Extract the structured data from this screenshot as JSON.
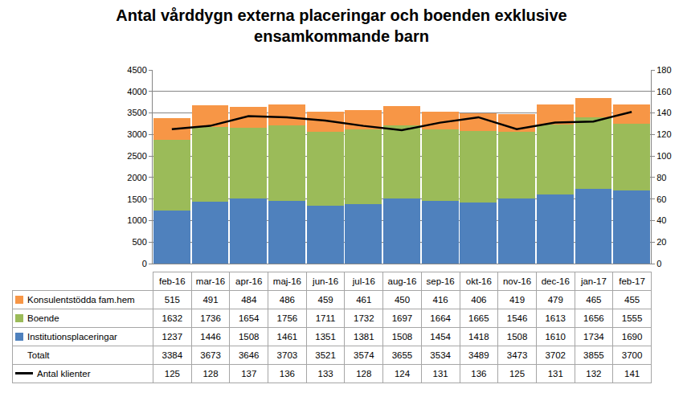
{
  "chart_data": {
    "type": "bar",
    "title": "Antal vårddygn externa placeringar och boenden exklusive ensamkommande barn",
    "stacked": true,
    "grid": true,
    "categories": [
      "feb-16",
      "mar-16",
      "apr-16",
      "maj-16",
      "jun-16",
      "jul-16",
      "aug-16",
      "sep-16",
      "okt-16",
      "nov-16",
      "dec-16",
      "jan-17",
      "feb-17"
    ],
    "series": [
      {
        "name": "Institutionsplaceringar",
        "color": "#4f81bd",
        "values": [
          1237,
          1446,
          1508,
          1461,
          1351,
          1381,
          1508,
          1454,
          1418,
          1508,
          1610,
          1734,
          1690
        ]
      },
      {
        "name": "Boende",
        "color": "#9bbb59",
        "values": [
          1632,
          1736,
          1654,
          1756,
          1711,
          1732,
          1697,
          1664,
          1665,
          1546,
          1613,
          1656,
          1555
        ]
      },
      {
        "name": "Konsulentstödda fam.hem",
        "color": "#f79646",
        "values": [
          515,
          491,
          484,
          486,
          459,
          461,
          450,
          416,
          406,
          419,
          479,
          465,
          455
        ]
      },
      {
        "name": "Antal klienter",
        "type": "line",
        "axis": "y2",
        "color": "#000000",
        "values": [
          125,
          128,
          137,
          136,
          133,
          128,
          124,
          131,
          136,
          125,
          131,
          132,
          141
        ]
      }
    ],
    "total_label": "Totalt",
    "totals": [
      3384,
      3673,
      3646,
      3703,
      3521,
      3574,
      3655,
      3534,
      3489,
      3473,
      3702,
      3855,
      3700
    ],
    "ylim": [
      0,
      4500
    ],
    "yticks": [
      0,
      500,
      1000,
      1500,
      2000,
      2500,
      3000,
      3500,
      4000,
      4500
    ],
    "y2lim": [
      0,
      180
    ],
    "y2ticks": [
      0,
      20,
      40,
      60,
      80,
      100,
      120,
      140,
      160,
      180
    ]
  }
}
